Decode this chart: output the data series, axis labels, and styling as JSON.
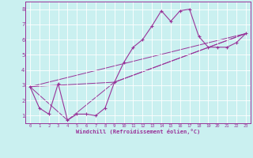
{
  "xlabel": "Windchill (Refroidissement éolien,°C)",
  "bg_color": "#caf0f0",
  "line_color": "#993399",
  "grid_color": "#ffffff",
  "xlim": [
    -0.5,
    23.5
  ],
  "ylim": [
    0.5,
    8.5
  ],
  "xticks": [
    0,
    1,
    2,
    3,
    4,
    5,
    6,
    7,
    8,
    9,
    10,
    11,
    12,
    13,
    14,
    15,
    16,
    17,
    18,
    19,
    20,
    21,
    22,
    23
  ],
  "yticks": [
    1,
    2,
    3,
    4,
    5,
    6,
    7,
    8
  ],
  "series1_x": [
    0,
    1,
    2,
    3,
    4,
    5,
    6,
    7,
    8,
    9,
    10,
    11,
    12,
    13,
    14,
    15,
    16,
    17,
    18,
    19,
    20,
    21,
    22,
    23
  ],
  "series1_y": [
    2.9,
    1.5,
    1.1,
    3.1,
    0.7,
    1.1,
    1.1,
    1.0,
    1.5,
    3.2,
    4.5,
    5.5,
    6.0,
    6.9,
    7.9,
    7.2,
    7.9,
    8.0,
    6.2,
    5.5,
    5.5,
    5.5,
    5.8,
    6.4
  ],
  "series2_x": [
    0,
    23
  ],
  "series2_y": [
    2.9,
    6.4
  ],
  "series3_x": [
    0,
    9,
    23
  ],
  "series3_y": [
    2.9,
    3.2,
    6.4
  ],
  "series4_x": [
    0,
    4,
    9,
    23
  ],
  "series4_y": [
    2.9,
    0.7,
    3.2,
    6.4
  ]
}
